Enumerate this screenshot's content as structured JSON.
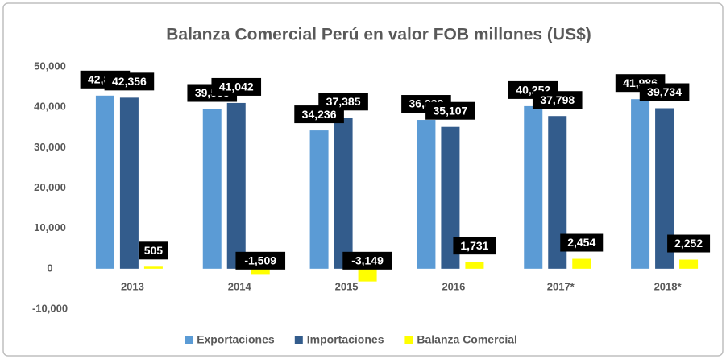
{
  "chart_data": {
    "type": "bar",
    "title": "Balanza Comercial Perú en valor FOB millones (US$)",
    "categories": [
      "2013",
      "2014",
      "2015",
      "2016",
      "2017*",
      "2018*"
    ],
    "series": [
      {
        "name": "Exportaciones",
        "color": "#5b9bd5",
        "values": [
          42861,
          39533,
          34236,
          36838,
          40252,
          41986
        ],
        "value_labels": [
          "42,861",
          "39,533",
          "34,236",
          "36,838",
          "40,252",
          "41,986"
        ]
      },
      {
        "name": "Importaciones",
        "color": "#335c8c",
        "values": [
          42356,
          41042,
          37385,
          35107,
          37798,
          39734
        ],
        "value_labels": [
          "42,356",
          "41,042",
          "37,385",
          "35,107",
          "37,798",
          "39,734"
        ]
      },
      {
        "name": "Balanza Comercial",
        "color": "#ffff00",
        "values": [
          505,
          -1509,
          -3149,
          1731,
          2454,
          2252
        ],
        "value_labels": [
          "505",
          "-1,509",
          "-3,149",
          "1,731",
          "2,454",
          "2,252"
        ]
      }
    ],
    "ylim": [
      -10000,
      50000
    ],
    "yticks": [
      {
        "value": -10000,
        "label": "-10,000"
      },
      0,
      {
        "value": 10000,
        "label": "10,000"
      },
      {
        "value": 20000,
        "label": "20,000"
      },
      {
        "value": 30000,
        "label": "30,000"
      },
      {
        "value": 40000,
        "label": "40,000"
      },
      {
        "value": 50000,
        "label": "50,000"
      }
    ],
    "grid": false,
    "legend": "bottom"
  }
}
